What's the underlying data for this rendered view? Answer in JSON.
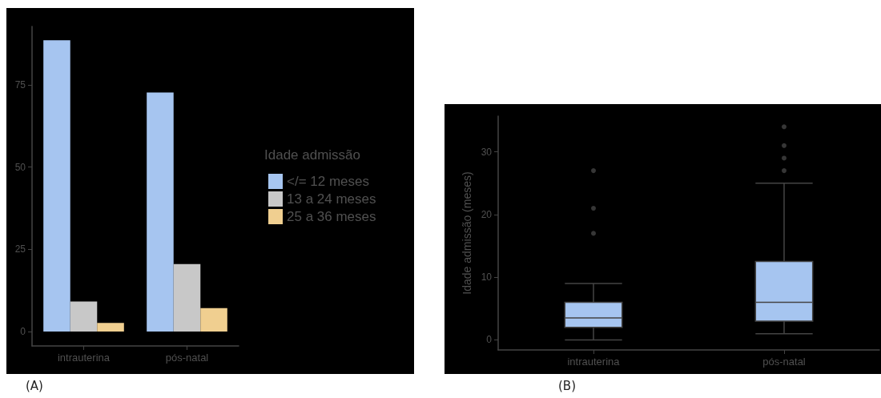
{
  "chart_data": [
    {
      "type": "bar",
      "categories": [
        "intrauterina",
        "pós-natal"
      ],
      "legend_title": "Idade admissão",
      "legend": "right",
      "series": [
        {
          "name": "</= 12 meses",
          "color": "#a6c5f0",
          "values": [
            88.6,
            72.7
          ]
        },
        {
          "name": "13 a 24 meses",
          "color": "#c8c8c8",
          "values": [
            9.1,
            20.5
          ]
        },
        {
          "name": "25 a 36 meses",
          "color": "#f0cf90",
          "values": [
            2.6,
            7.1
          ]
        }
      ],
      "ylim": [
        -4.4,
        92.8
      ],
      "yticks": [
        0,
        25,
        50,
        75
      ],
      "grid": false,
      "annotations": [
        "(A)"
      ]
    },
    {
      "type": "box",
      "categories": [
        "intrauterina",
        "pós-natal"
      ],
      "ylabel": "Idade admissão (meses)",
      "color": "#a6c5f0",
      "boxes": [
        {
          "low": 0,
          "q1": 2,
          "median": 3.5,
          "q3": 6,
          "high": 9,
          "outliers": [
            17,
            21,
            27
          ]
        },
        {
          "low": 1,
          "q1": 3,
          "median": 6,
          "q3": 12.5,
          "high": 25,
          "outliers": [
            27,
            29,
            31,
            34
          ]
        }
      ],
      "ylim": [
        -1.6,
        35.7
      ],
      "yticks": [
        0,
        10,
        20,
        30
      ],
      "grid": false,
      "marker": "circle",
      "annotations": [
        "(B)"
      ]
    }
  ]
}
